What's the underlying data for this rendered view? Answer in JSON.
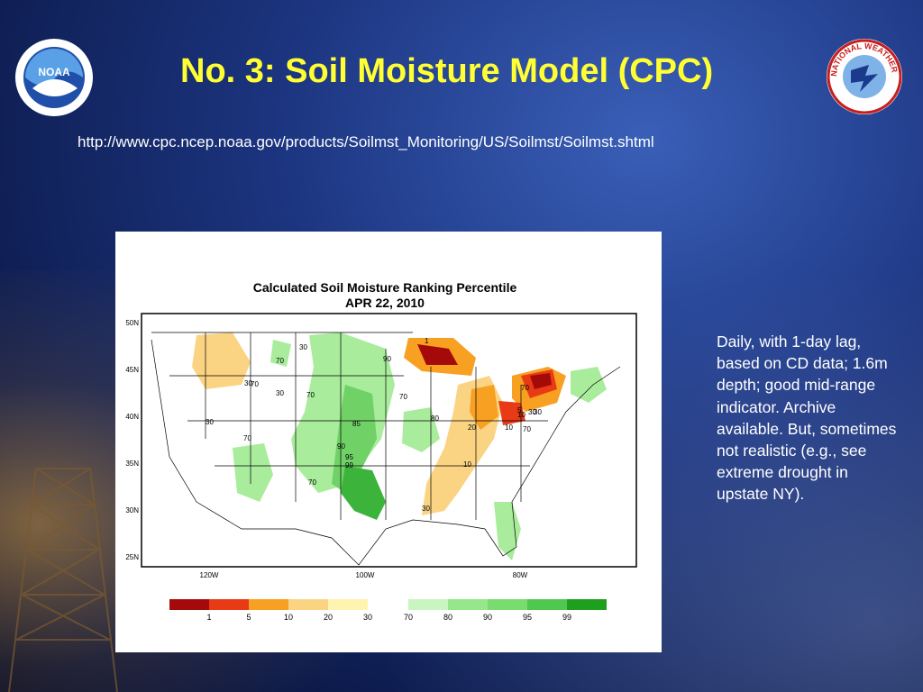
{
  "slide": {
    "title": "No. 3: Soil Moisture Model (CPC)",
    "url": "http://www.cpc.ncep.noaa.gov/products/Soilmst_Monitoring/US/Soilmst/Soilmst.shtml",
    "notes": "Daily, with 1-day lag, based on CD data; 1.6m depth; good mid-range indicator. Archive available. But, sometimes not realistic (e.g., see extreme drought in upstate NY)."
  },
  "logos": {
    "noaa": {
      "text": "NOAA",
      "icon": "noaa-logo-icon"
    },
    "nws": {
      "text": "NATIONAL WEATHER SERVICE",
      "icon": "nws-logo-icon"
    }
  },
  "map": {
    "title_line1": "Calculated Soil Moisture Ranking Percentile",
    "title_line2": "APR 22, 2010",
    "lat_labels": [
      "50N",
      "45N",
      "40N",
      "35N",
      "30N",
      "25N"
    ],
    "lon_labels": [
      "120W",
      "100W",
      "80W"
    ],
    "contour_labels": [
      "30",
      "70",
      "30",
      "70",
      "30",
      "70",
      "90",
      "70",
      "30",
      "70",
      "80",
      "85",
      "90",
      "95",
      "99",
      "70",
      "70",
      "5",
      "20",
      "10",
      "30",
      "10",
      "30",
      "70",
      "30",
      "10",
      "1"
    ],
    "legend": {
      "labels": [
        "1",
        "5",
        "10",
        "20",
        "30",
        "70",
        "80",
        "90",
        "95",
        "99"
      ],
      "dry_colors": [
        "#a50a0a",
        "#e83a14",
        "#f7a021",
        "#fbd483",
        "#fff3b0"
      ],
      "wet_colors": [
        "#c8f5c0",
        "#96e68c",
        "#78dc6e",
        "#50c850",
        "#1ea01e"
      ]
    }
  }
}
